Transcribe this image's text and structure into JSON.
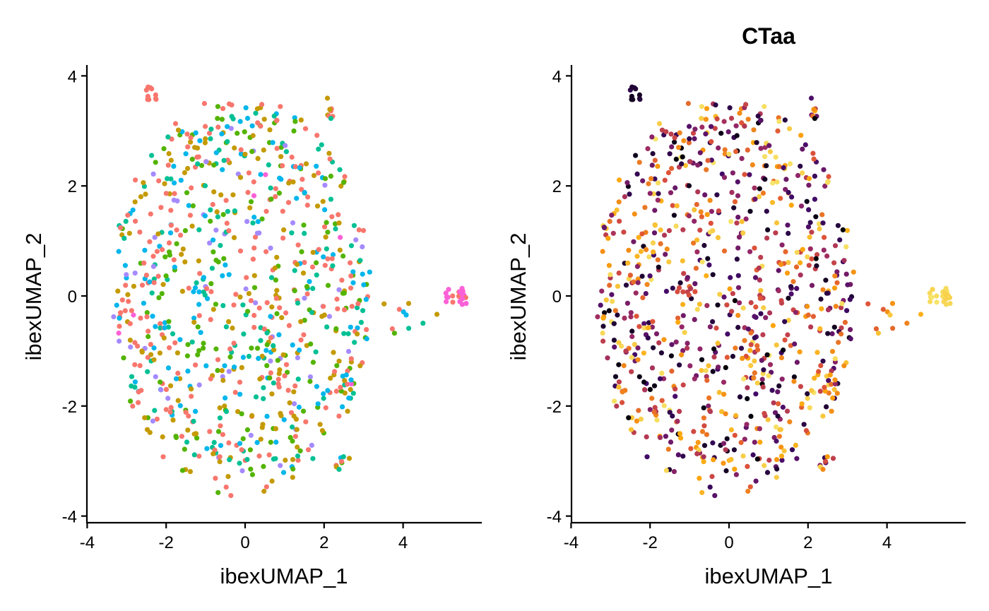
{
  "chart_data": [
    {
      "type": "scatter",
      "title": "",
      "xlabel": "ibexUMAP_1",
      "ylabel": "ibexUMAP_2",
      "xlim": [
        -4,
        6
      ],
      "ylim": [
        -4,
        4.2
      ],
      "x_ticks": [
        "-4",
        "-2",
        "0",
        "2",
        "4"
      ],
      "y_ticks": [
        "-4",
        "-2",
        "0",
        "2",
        "4"
      ],
      "coloring": "categorical",
      "palette": [
        "#F8766D",
        "#C49A00",
        "#53B400",
        "#00C094",
        "#00B6EB",
        "#A58AFF",
        "#FB61D7"
      ],
      "point_count": 900,
      "approx_regions": [
        {
          "description": "main cloud",
          "x_range": [
            -3.6,
            3.4
          ],
          "y_range": [
            -3.7,
            3.5
          ]
        },
        {
          "description": "tight cluster",
          "x": 5.2,
          "y": 0.0
        },
        {
          "description": "upper-left clump",
          "x": -2.4,
          "y": 3.7
        }
      ]
    },
    {
      "type": "scatter",
      "title": "CTaa",
      "xlabel": "ibexUMAP_1",
      "ylabel": "ibexUMAP_2",
      "xlim": [
        -4,
        6
      ],
      "ylim": [
        -4,
        4.2
      ],
      "x_ticks": [
        "-4",
        "-2",
        "0",
        "2",
        "4"
      ],
      "y_ticks": [
        "-4",
        "-2",
        "0",
        "2",
        "4"
      ],
      "coloring": "continuous (inferno-like)",
      "palette": [
        "#000004",
        "#420A68",
        "#932667",
        "#DD513A",
        "#FCA50A",
        "#F6E56B"
      ],
      "point_count": 900,
      "approx_regions": [
        {
          "description": "main cloud",
          "x_range": [
            -3.6,
            3.4
          ],
          "y_range": [
            -3.7,
            3.5
          ]
        },
        {
          "description": "pale yellow cluster",
          "x": 5.2,
          "y": 0.0
        },
        {
          "description": "dark clump",
          "x": -2.4,
          "y": 3.7
        }
      ]
    }
  ]
}
